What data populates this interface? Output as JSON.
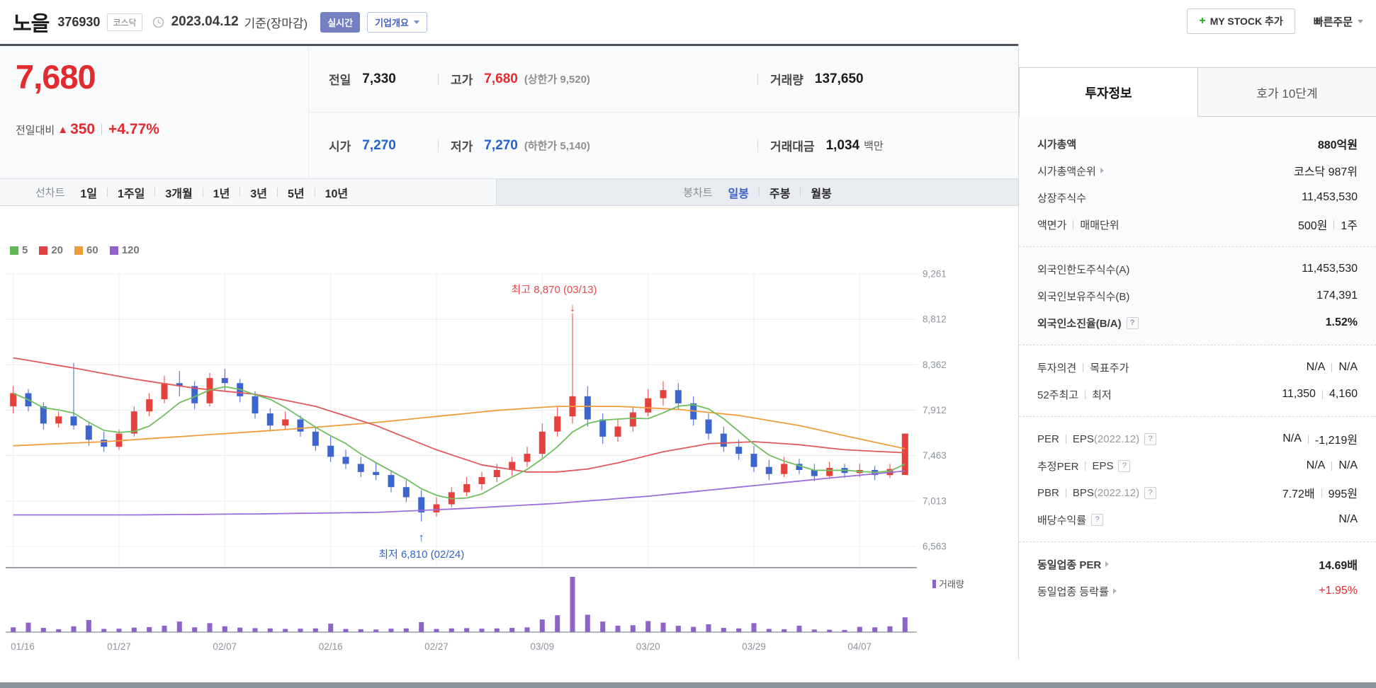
{
  "header": {
    "title": "노을",
    "code": "376930",
    "market_badge": "코스닥",
    "date": "2023.04.12",
    "date_suffix": "기준(장마감)",
    "realtime_label": "실시간",
    "company_overview_label": "기업개요",
    "my_stock_plus": "+",
    "my_stock_label": "MY STOCK 추가",
    "quick_order_label": "빠른주문"
  },
  "price": {
    "current": "7,680",
    "change_label": "전일대비",
    "change_arrow": "▲",
    "change": "350",
    "change_pct": "+4.77%"
  },
  "quote": {
    "prev_label": "전일",
    "prev": "7,330",
    "high_label": "고가",
    "high": "7,680",
    "high_limit": "(상한가 9,520)",
    "volume_label": "거래량",
    "volume": "137,650",
    "open_label": "시가",
    "open": "7,270",
    "low_label": "저가",
    "low": "7,270",
    "low_limit": "(하한가 5,140)",
    "amount_label": "거래대금",
    "amount": "1,034",
    "amount_unit": "백만"
  },
  "chart_tabs": {
    "line_label": "선차트",
    "line_items": [
      "1일",
      "1주일",
      "3개월",
      "1년",
      "3년",
      "5년",
      "10년"
    ],
    "candle_label": "봉차트",
    "candle_items": [
      "일봉",
      "주봉",
      "월봉"
    ],
    "selected": "일봉"
  },
  "chart_data": {
    "type": "candlestick",
    "y_ticks": [
      9261,
      8812,
      8362,
      7912,
      7463,
      7013,
      6563
    ],
    "y_tick_labels": [
      "9,261",
      "8,812",
      "8,362",
      "7,912",
      "7,463",
      "7,013",
      "6,563"
    ],
    "x_labels": [
      "01/16",
      "01/27",
      "02/07",
      "02/16",
      "02/27",
      "03/09",
      "03/20",
      "03/29",
      "04/07"
    ],
    "x_label_indices": [
      0,
      7,
      14,
      21,
      28,
      35,
      42,
      49,
      56
    ],
    "dates": [
      "01/16",
      "01/17",
      "01/18",
      "01/19",
      "01/20",
      "01/25",
      "01/26",
      "01/27",
      "01/30",
      "01/31",
      "02/01",
      "02/02",
      "02/03",
      "02/06",
      "02/07",
      "02/08",
      "02/09",
      "02/10",
      "02/13",
      "02/14",
      "02/15",
      "02/16",
      "02/17",
      "02/20",
      "02/21",
      "02/22",
      "02/23",
      "02/24",
      "02/27",
      "02/28",
      "03/02",
      "03/03",
      "03/06",
      "03/07",
      "03/08",
      "03/09",
      "03/10",
      "03/13",
      "03/14",
      "03/15",
      "03/16",
      "03/17",
      "03/20",
      "03/21",
      "03/22",
      "03/23",
      "03/24",
      "03/27",
      "03/28",
      "03/29",
      "03/30",
      "03/31",
      "04/03",
      "04/04",
      "04/05",
      "04/06",
      "04/07",
      "04/10",
      "04/11",
      "04/12"
    ],
    "candles": [
      [
        7950,
        8150,
        7880,
        8080,
        90
      ],
      [
        8080,
        8120,
        7900,
        7950,
        180
      ],
      [
        7950,
        7990,
        7720,
        7780,
        80
      ],
      [
        7780,
        7900,
        7740,
        7850,
        55
      ],
      [
        7850,
        8380,
        7720,
        7760,
        110
      ],
      [
        7760,
        7800,
        7560,
        7620,
        230
      ],
      [
        7620,
        7700,
        7500,
        7550,
        60
      ],
      [
        7550,
        7720,
        7520,
        7680,
        65
      ],
      [
        7680,
        7950,
        7650,
        7900,
        85
      ],
      [
        7900,
        8080,
        7850,
        8020,
        95
      ],
      [
        8020,
        8250,
        7980,
        8180,
        120
      ],
      [
        8180,
        8300,
        8050,
        8150,
        200
      ],
      [
        8150,
        8200,
        7920,
        7980,
        90
      ],
      [
        7980,
        8280,
        7950,
        8230,
        170
      ],
      [
        8230,
        8320,
        8100,
        8180,
        110
      ],
      [
        8180,
        8220,
        7990,
        8050,
        85
      ],
      [
        8050,
        8100,
        7830,
        7880,
        75
      ],
      [
        7880,
        7930,
        7700,
        7760,
        70
      ],
      [
        7760,
        7900,
        7720,
        7820,
        60
      ],
      [
        7820,
        7860,
        7650,
        7700,
        65
      ],
      [
        7700,
        7750,
        7510,
        7560,
        70
      ],
      [
        7560,
        7650,
        7400,
        7450,
        160
      ],
      [
        7450,
        7520,
        7330,
        7380,
        60
      ],
      [
        7380,
        7450,
        7250,
        7300,
        55
      ],
      [
        7300,
        7400,
        7220,
        7270,
        50
      ],
      [
        7270,
        7320,
        7100,
        7150,
        65
      ],
      [
        7150,
        7220,
        7000,
        7050,
        70
      ],
      [
        7050,
        7120,
        6810,
        6900,
        190
      ],
      [
        6900,
        7050,
        6860,
        6980,
        60
      ],
      [
        6980,
        7150,
        6950,
        7100,
        70
      ],
      [
        7100,
        7250,
        7060,
        7180,
        75
      ],
      [
        7180,
        7300,
        7120,
        7250,
        65
      ],
      [
        7250,
        7380,
        7200,
        7320,
        70
      ],
      [
        7320,
        7450,
        7260,
        7400,
        80
      ],
      [
        7400,
        7550,
        7350,
        7480,
        90
      ],
      [
        7480,
        7780,
        7440,
        7700,
        240
      ],
      [
        7700,
        7950,
        7650,
        7850,
        320
      ],
      [
        7850,
        8870,
        7780,
        8050,
        1050
      ],
      [
        8050,
        8150,
        7750,
        7820,
        330
      ],
      [
        7820,
        7880,
        7580,
        7650,
        200
      ],
      [
        7650,
        7820,
        7600,
        7750,
        120
      ],
      [
        7750,
        7950,
        7700,
        7890,
        130
      ],
      [
        7890,
        8120,
        7850,
        8030,
        210
      ],
      [
        8030,
        8200,
        7960,
        8110,
        180
      ],
      [
        8110,
        8180,
        7920,
        7980,
        120
      ],
      [
        7980,
        8050,
        7760,
        7820,
        100
      ],
      [
        7820,
        7880,
        7620,
        7680,
        150
      ],
      [
        7680,
        7750,
        7500,
        7550,
        80
      ],
      [
        7550,
        7620,
        7420,
        7480,
        70
      ],
      [
        7480,
        7560,
        7300,
        7350,
        170
      ],
      [
        7350,
        7420,
        7220,
        7280,
        60
      ],
      [
        7280,
        7450,
        7250,
        7380,
        55
      ],
      [
        7380,
        7430,
        7280,
        7320,
        120
      ],
      [
        7320,
        7380,
        7210,
        7260,
        50
      ],
      [
        7260,
        7400,
        7230,
        7340,
        45
      ],
      [
        7340,
        7380,
        7240,
        7290,
        40
      ],
      [
        7290,
        7380,
        7250,
        7320,
        100
      ],
      [
        7320,
        7360,
        7220,
        7270,
        90
      ],
      [
        7270,
        7380,
        7240,
        7330,
        110
      ],
      [
        7270,
        7680,
        7270,
        7680,
        280
      ]
    ],
    "volume_max": 1050,
    "ma_keypoints": {
      "ma20": [
        [
          0,
          8430
        ],
        [
          4,
          8330
        ],
        [
          8,
          8220
        ],
        [
          12,
          8130
        ],
        [
          16,
          8070
        ],
        [
          20,
          7950
        ],
        [
          24,
          7760
        ],
        [
          28,
          7520
        ],
        [
          31,
          7370
        ],
        [
          34,
          7300
        ],
        [
          36,
          7300
        ],
        [
          38,
          7330
        ],
        [
          40,
          7390
        ],
        [
          43,
          7500
        ],
        [
          46,
          7580
        ],
        [
          49,
          7600
        ],
        [
          52,
          7570
        ],
        [
          55,
          7520
        ],
        [
          59,
          7490
        ]
      ],
      "ma60": [
        [
          0,
          7560
        ],
        [
          6,
          7600
        ],
        [
          12,
          7660
        ],
        [
          18,
          7720
        ],
        [
          24,
          7790
        ],
        [
          28,
          7850
        ],
        [
          32,
          7910
        ],
        [
          36,
          7950
        ],
        [
          40,
          7950
        ],
        [
          44,
          7920
        ],
        [
          48,
          7860
        ],
        [
          52,
          7760
        ],
        [
          55,
          7660
        ],
        [
          59,
          7530
        ]
      ],
      "ma120": [
        [
          0,
          6875
        ],
        [
          8,
          6875
        ],
        [
          16,
          6885
        ],
        [
          24,
          6900
        ],
        [
          30,
          6940
        ],
        [
          36,
          6990
        ],
        [
          42,
          7060
        ],
        [
          48,
          7150
        ],
        [
          54,
          7240
        ],
        [
          59,
          7310
        ]
      ]
    },
    "annotations": {
      "high": {
        "text": "최고 8,870 (03/13)",
        "arrow": "↓",
        "index": 37,
        "price": 8870
      },
      "low": {
        "text": "최저 6,810 (02/24)",
        "arrow": "↑",
        "index": 27,
        "price": 6810
      }
    },
    "legend": [
      {
        "name": "5",
        "color": "#62b757"
      },
      {
        "name": "20",
        "color": "#e14040"
      },
      {
        "name": "60",
        "color": "#ef9d38"
      },
      {
        "name": "120",
        "color": "#9262c9"
      }
    ],
    "volume_legend": "거래량",
    "colors": {
      "up": "#e4403c",
      "down": "#3e64cf",
      "volume": "#8f63c7",
      "grid": "#ececec",
      "axis_text": "#8e949c",
      "ma5": "#6fbf5f",
      "ma20": "#e0595c",
      "ma60": "#ee9d3c",
      "ma120": "#9d6ddb",
      "annotation_high": "#e5484d",
      "annotation_low": "#2e66d0"
    }
  },
  "info": {
    "tabs": [
      {
        "label": "투자정보"
      },
      {
        "label": "호가 10단계"
      }
    ],
    "active_tab": "투자정보",
    "help_glyph": "?",
    "rows": [
      {
        "label": "시가총액",
        "value": "880억원"
      },
      {
        "label": "시가총액순위",
        "value": "코스닥 987위"
      },
      {
        "label": "상장주식수",
        "value": "11,453,530"
      },
      {
        "label": "액면가",
        "label2": "매매단위",
        "value": "500원",
        "value2": "1주"
      },
      {
        "label": "외국인한도주식수(A)",
        "value": "11,453,530"
      },
      {
        "label": "외국인보유주식수(B)",
        "value": "174,391"
      },
      {
        "label": "외국인소진율(B/A)",
        "value": "1.52%"
      },
      {
        "label": "투자의견",
        "label2": "목표주가",
        "value": "N/A",
        "value2": "N/A"
      },
      {
        "label": "52주최고",
        "label2": "최저",
        "value": "11,350",
        "value2": "4,160"
      },
      {
        "label": "PER",
        "label2": "EPS",
        "label2_paren": "(2022.12)",
        "value": "N/A",
        "value2": "-1,219원"
      },
      {
        "label": "추정PER",
        "label2": "EPS",
        "value": "N/A",
        "value2": "N/A"
      },
      {
        "label": "PBR",
        "label2": "BPS",
        "label2_paren": "(2022.12)",
        "value": "7.72배",
        "value2": "995원"
      },
      {
        "label": "배당수익률",
        "value": "N/A"
      },
      {
        "label": "동일업종 PER",
        "value": "14.69배"
      },
      {
        "label": "동일업종 등락률",
        "value": "+1.95%"
      }
    ]
  }
}
